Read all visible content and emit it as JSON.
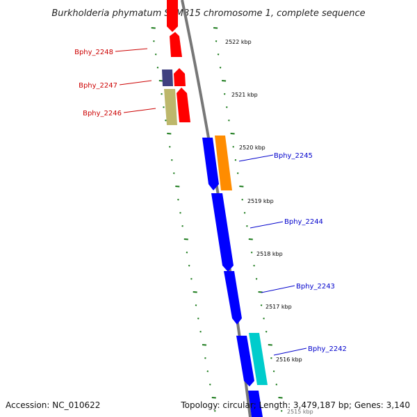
{
  "title": "Burkholderia phymatum STM815 chromosome 1, complete sequence",
  "footer": {
    "accession": "Accession: NC_010622",
    "summary": "Topology: circular; Length: 3,479,187 bp; Genes: 3,140"
  },
  "ticks": [
    "2522 kbp",
    "2521 kbp",
    "2520 kbp",
    "2519 kbp",
    "2518 kbp",
    "2517 kbp",
    "2516 kbp",
    "2515 kbp"
  ],
  "genes_left": [
    "Bphy_2248",
    "Bphy_2247",
    "Bphy_2246"
  ],
  "genes_right": [
    "Bphy_2245",
    "Bphy_2244",
    "Bphy_2243",
    "Bphy_2242"
  ],
  "colors": {
    "red": "#ff0000",
    "blue": "#0000ff",
    "orange": "#ff8c00",
    "cyan": "#00cccc",
    "navy": "#404080",
    "khaki": "#bdb76b",
    "tick_green": "#1a7a1a",
    "backbone": "#808080",
    "label_red": "#cc0000",
    "label_blue": "#0000cc"
  }
}
